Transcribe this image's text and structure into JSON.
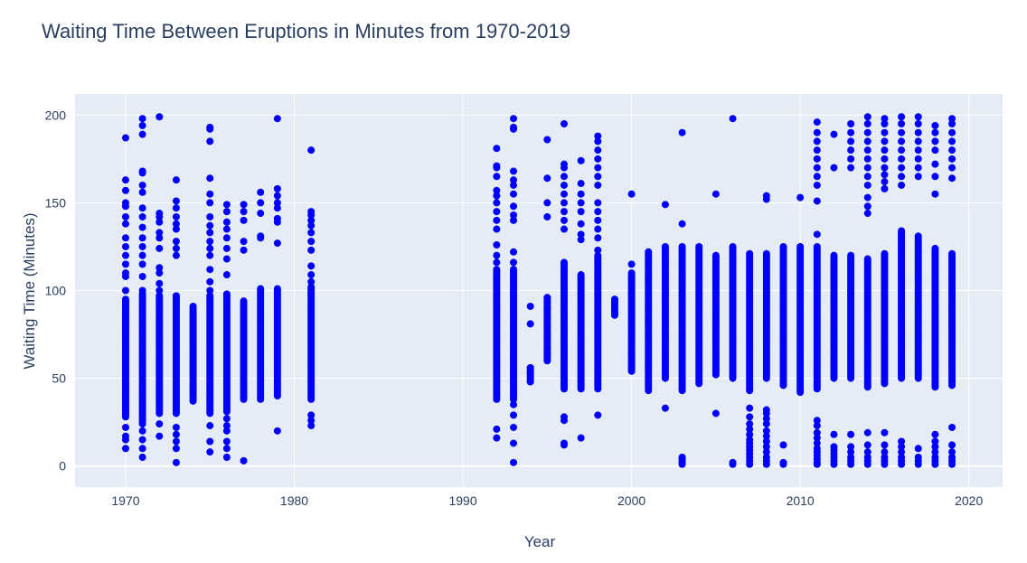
{
  "chart_data": {
    "type": "scatter",
    "title": "Waiting Time Between Eruptions in Minutes from 1970-2019",
    "xlabel": "Year",
    "ylabel": "Waiting Time (Minutes)",
    "xlim": [
      1967,
      2022
    ],
    "ylim": [
      -12,
      212
    ],
    "xticks": [
      1970,
      1980,
      1990,
      2000,
      2010,
      2020
    ],
    "yticks": [
      0,
      50,
      100,
      150,
      200
    ],
    "grid": true,
    "legend": "none",
    "marker_color": "#0000ff",
    "plot_background": "#e5ecf6",
    "series": [
      {
        "columns": [
          {
            "x": 1970,
            "dense": [
              28,
              95
            ],
            "outliers": [
              10,
              15,
              17,
              22,
              100,
              108,
              110,
              115,
              120,
              125,
              130,
              138,
              142,
              148,
              150,
              157,
              163,
              187
            ]
          },
          {
            "x": 1971,
            "dense": [
              24,
              98
            ],
            "outliers": [
              5,
              10,
              15,
              20,
              100,
              108,
              115,
              120,
              125,
              130,
              136,
              142,
              147,
              156,
              160,
              167,
              168,
              189,
              194,
              198
            ]
          },
          {
            "x": 1972,
            "dense": [
              30,
              97
            ],
            "outliers": [
              17,
              24,
              100,
              104,
              110,
              113,
              124,
              130,
              133,
              139,
              142,
              144,
              199
            ]
          },
          {
            "x": 1973,
            "dense": [
              30,
              97
            ],
            "outliers": [
              2,
              10,
              14,
              18,
              22,
              120,
              124,
              128,
              135,
              138,
              142,
              147,
              151,
              163
            ]
          },
          {
            "x": 1974,
            "dense": [
              37,
              91
            ],
            "outliers": []
          },
          {
            "x": 1975,
            "dense": [
              30,
              97
            ],
            "outliers": [
              8,
              14,
              23,
              100,
              105,
              112,
              120,
              124,
              128,
              133,
              137,
              142,
              150,
              155,
              164,
              185,
              192,
              193
            ]
          },
          {
            "x": 1976,
            "dense": [
              31,
              98
            ],
            "outliers": [
              5,
              10,
              14,
              20,
              23,
              27,
              109,
              118,
              124,
              130,
              135,
              139,
              145,
              149
            ]
          },
          {
            "x": 1977,
            "dense": [
              38,
              94
            ],
            "outliers": [
              3,
              123,
              128,
              140,
              145,
              149
            ]
          },
          {
            "x": 1978,
            "dense": [
              38,
              101
            ],
            "outliers": [
              130,
              131,
              144,
              150,
              156
            ]
          },
          {
            "x": 1979,
            "dense": [
              40,
              101
            ],
            "outliers": [
              20,
              127,
              139,
              141,
              147,
              150,
              154,
              158,
              198
            ]
          },
          {
            "x": 1981,
            "dense": [
              38,
              102
            ],
            "outliers": [
              23,
              26,
              29,
              105,
              109,
              114,
              123,
              128,
              133,
              137,
              140,
              143,
              145,
              180
            ]
          },
          {
            "x": 1992,
            "dense": [
              38,
              112
            ],
            "outliers": [
              16,
              21,
              116,
              120,
              126,
              135,
              140,
              145,
              150,
              154,
              157,
              165,
              170,
              171,
              181
            ]
          },
          {
            "x": 1993,
            "dense": [
              38,
              112
            ],
            "outliers": [
              2,
              13,
              22,
              29,
              35,
              116,
              122,
              140,
              143,
              148,
              155,
              160,
              163,
              168,
              192,
              193,
              198
            ]
          },
          {
            "x": 1994,
            "dense": [
              48,
              56
            ],
            "outliers": [
              48,
              53,
              56,
              81,
              91
            ]
          },
          {
            "x": 1995,
            "dense": [
              60,
              96
            ],
            "outliers": [
              60,
              64,
              67,
              74,
              80,
              85,
              89,
              93,
              96,
              142,
              150,
              164,
              186
            ]
          },
          {
            "x": 1996,
            "dense": [
              44,
              116
            ],
            "outliers": [
              12,
              13,
              26,
              28,
              135,
              140,
              145,
              150,
              155,
              160,
              165,
              170,
              172,
              195
            ]
          },
          {
            "x": 1997,
            "dense": [
              44,
              109
            ],
            "outliers": [
              16,
              129,
              132,
              138,
              145,
              150,
              155,
              161,
              174
            ]
          },
          {
            "x": 1998,
            "dense": [
              44,
              120
            ],
            "outliers": [
              29,
              123,
              130,
              135,
              140,
              145,
              150,
              160,
              165,
              170,
              175,
              180,
              185,
              188
            ]
          },
          {
            "x": 1999,
            "dense": [
              86,
              95
            ],
            "outliers": [
              86,
              95
            ]
          },
          {
            "x": 2000,
            "dense": [
              54,
              110
            ],
            "outliers": [
              57,
              60,
              115,
              155
            ]
          },
          {
            "x": 2001,
            "dense": [
              43,
              122
            ],
            "outliers": []
          },
          {
            "x": 2002,
            "dense": [
              50,
              125
            ],
            "outliers": [
              33,
              149
            ]
          },
          {
            "x": 2003,
            "dense": [
              43,
              125
            ],
            "outliers": [
              1,
              2,
              3,
              4,
              5,
              138,
              190
            ]
          },
          {
            "x": 2004,
            "dense": [
              47,
              125
            ],
            "outliers": []
          },
          {
            "x": 2005,
            "dense": [
              52,
              120
            ],
            "outliers": [
              30,
              155
            ]
          },
          {
            "x": 2006,
            "dense": [
              50,
              125
            ],
            "outliers": [
              1,
              2,
              198
            ]
          },
          {
            "x": 2007,
            "dense": [
              43,
              121
            ],
            "outliers": [
              1,
              3,
              5,
              7,
              9,
              11,
              13,
              15,
              18,
              21,
              24,
              28,
              33
            ]
          },
          {
            "x": 2008,
            "dense": [
              50,
              121
            ],
            "outliers": [
              1,
              3,
              5,
              8,
              11,
              14,
              17,
              20,
              24,
              27,
              30,
              32,
              152,
              154
            ]
          },
          {
            "x": 2009,
            "dense": [
              46,
              125
            ],
            "outliers": [
              1,
              2,
              12
            ]
          },
          {
            "x": 2010,
            "dense": [
              42,
              125
            ],
            "outliers": [
              153
            ]
          },
          {
            "x": 2011,
            "dense": [
              44,
              125
            ],
            "outliers": [
              1,
              2,
              4,
              6,
              8,
              10,
              13,
              16,
              19,
              23,
              26,
              132,
              151,
              160,
              165,
              170,
              175,
              180,
              185,
              190,
              196
            ]
          },
          {
            "x": 2012,
            "dense": [
              50,
              120
            ],
            "outliers": [
              1,
              3,
              5,
              7,
              9,
              11,
              18,
              170,
              189
            ]
          },
          {
            "x": 2013,
            "dense": [
              50,
              120
            ],
            "outliers": [
              1,
              3,
              5,
              8,
              11,
              18,
              170,
              175,
              180,
              185,
              190,
              195
            ]
          },
          {
            "x": 2014,
            "dense": [
              45,
              118
            ],
            "outliers": [
              1,
              3,
              5,
              8,
              12,
              19,
              144,
              148,
              153,
              160,
              165,
              170,
              175,
              180,
              185,
              190,
              195,
              199
            ]
          },
          {
            "x": 2015,
            "dense": [
              47,
              121
            ],
            "outliers": [
              1,
              3,
              5,
              8,
              12,
              19,
              158,
              162,
              166,
              170,
              175,
              180,
              185,
              190,
              195,
              198
            ]
          },
          {
            "x": 2016,
            "dense": [
              50,
              134
            ],
            "outliers": [
              1,
              3,
              5,
              8,
              11,
              14,
              160,
              165,
              170,
              175,
              180,
              185,
              190,
              195,
              199
            ]
          },
          {
            "x": 2017,
            "dense": [
              50,
              131
            ],
            "outliers": [
              1,
              3,
              5,
              10,
              165,
              170,
              175,
              180,
              185,
              190,
              195,
              199
            ]
          },
          {
            "x": 2018,
            "dense": [
              45,
              124
            ],
            "outliers": [
              1,
              3,
              5,
              8,
              11,
              14,
              18,
              155,
              165,
              172,
              180,
              185,
              190,
              194
            ]
          },
          {
            "x": 2019,
            "dense": [
              46,
              121
            ],
            "outliers": [
              1,
              3,
              5,
              8,
              12,
              22,
              164,
              170,
              175,
              180,
              185,
              190,
              195,
              198
            ]
          }
        ]
      }
    ]
  }
}
